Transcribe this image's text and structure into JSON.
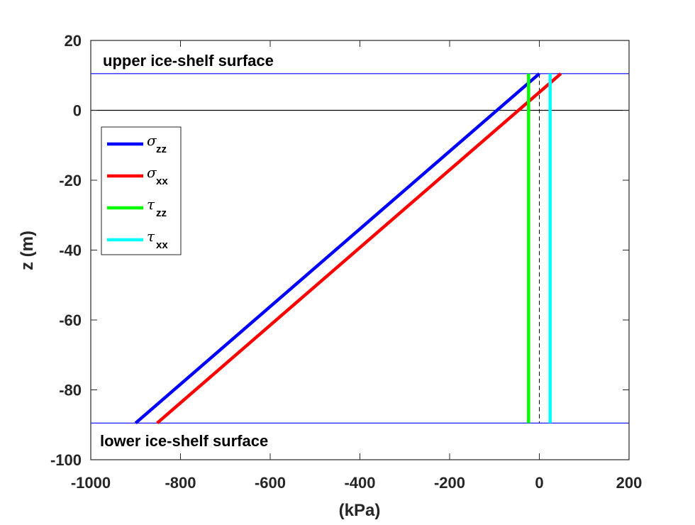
{
  "chart_data": {
    "type": "line",
    "title": "",
    "xlabel": "(kPa)",
    "ylabel": "z (m)",
    "xlim": [
      -1000,
      200
    ],
    "ylim": [
      -100,
      20
    ],
    "xticks": [
      -1000,
      -800,
      -600,
      -400,
      -200,
      0,
      200
    ],
    "yticks": [
      20,
      0,
      -20,
      -40,
      -60,
      -80,
      -100
    ],
    "grid": false,
    "legend_position": "top-left",
    "series": [
      {
        "symbol": "σ",
        "subscript": "zz",
        "color": "#0000ff",
        "x": [
          -900,
          0
        ],
        "y": [
          -89.5,
          10.5
        ]
      },
      {
        "symbol": "σ",
        "subscript": "xx",
        "color": "#ff0000",
        "x": [
          -852,
          48
        ],
        "y": [
          -89.5,
          10.5
        ]
      },
      {
        "symbol": "τ",
        "subscript": "zz",
        "color": "#00ff00",
        "x": [
          -24,
          -24
        ],
        "y": [
          -89.5,
          10.5
        ]
      },
      {
        "symbol": "τ",
        "subscript": "xx",
        "color": "#00ffff",
        "x": [
          24,
          24
        ],
        "y": [
          -89.5,
          10.5
        ]
      }
    ],
    "reference_lines": [
      {
        "orientation": "horizontal",
        "value": 10.5,
        "color": "#0000ff",
        "label": "upper ice-shelf surface"
      },
      {
        "orientation": "horizontal",
        "value": -89.5,
        "color": "#0000ff",
        "label": "lower ice-shelf surface"
      },
      {
        "orientation": "horizontal",
        "value": 0,
        "color": "#000000",
        "label": ""
      },
      {
        "orientation": "vertical",
        "value": 0,
        "color": "#000000",
        "style": "dashed",
        "label": ""
      }
    ]
  }
}
